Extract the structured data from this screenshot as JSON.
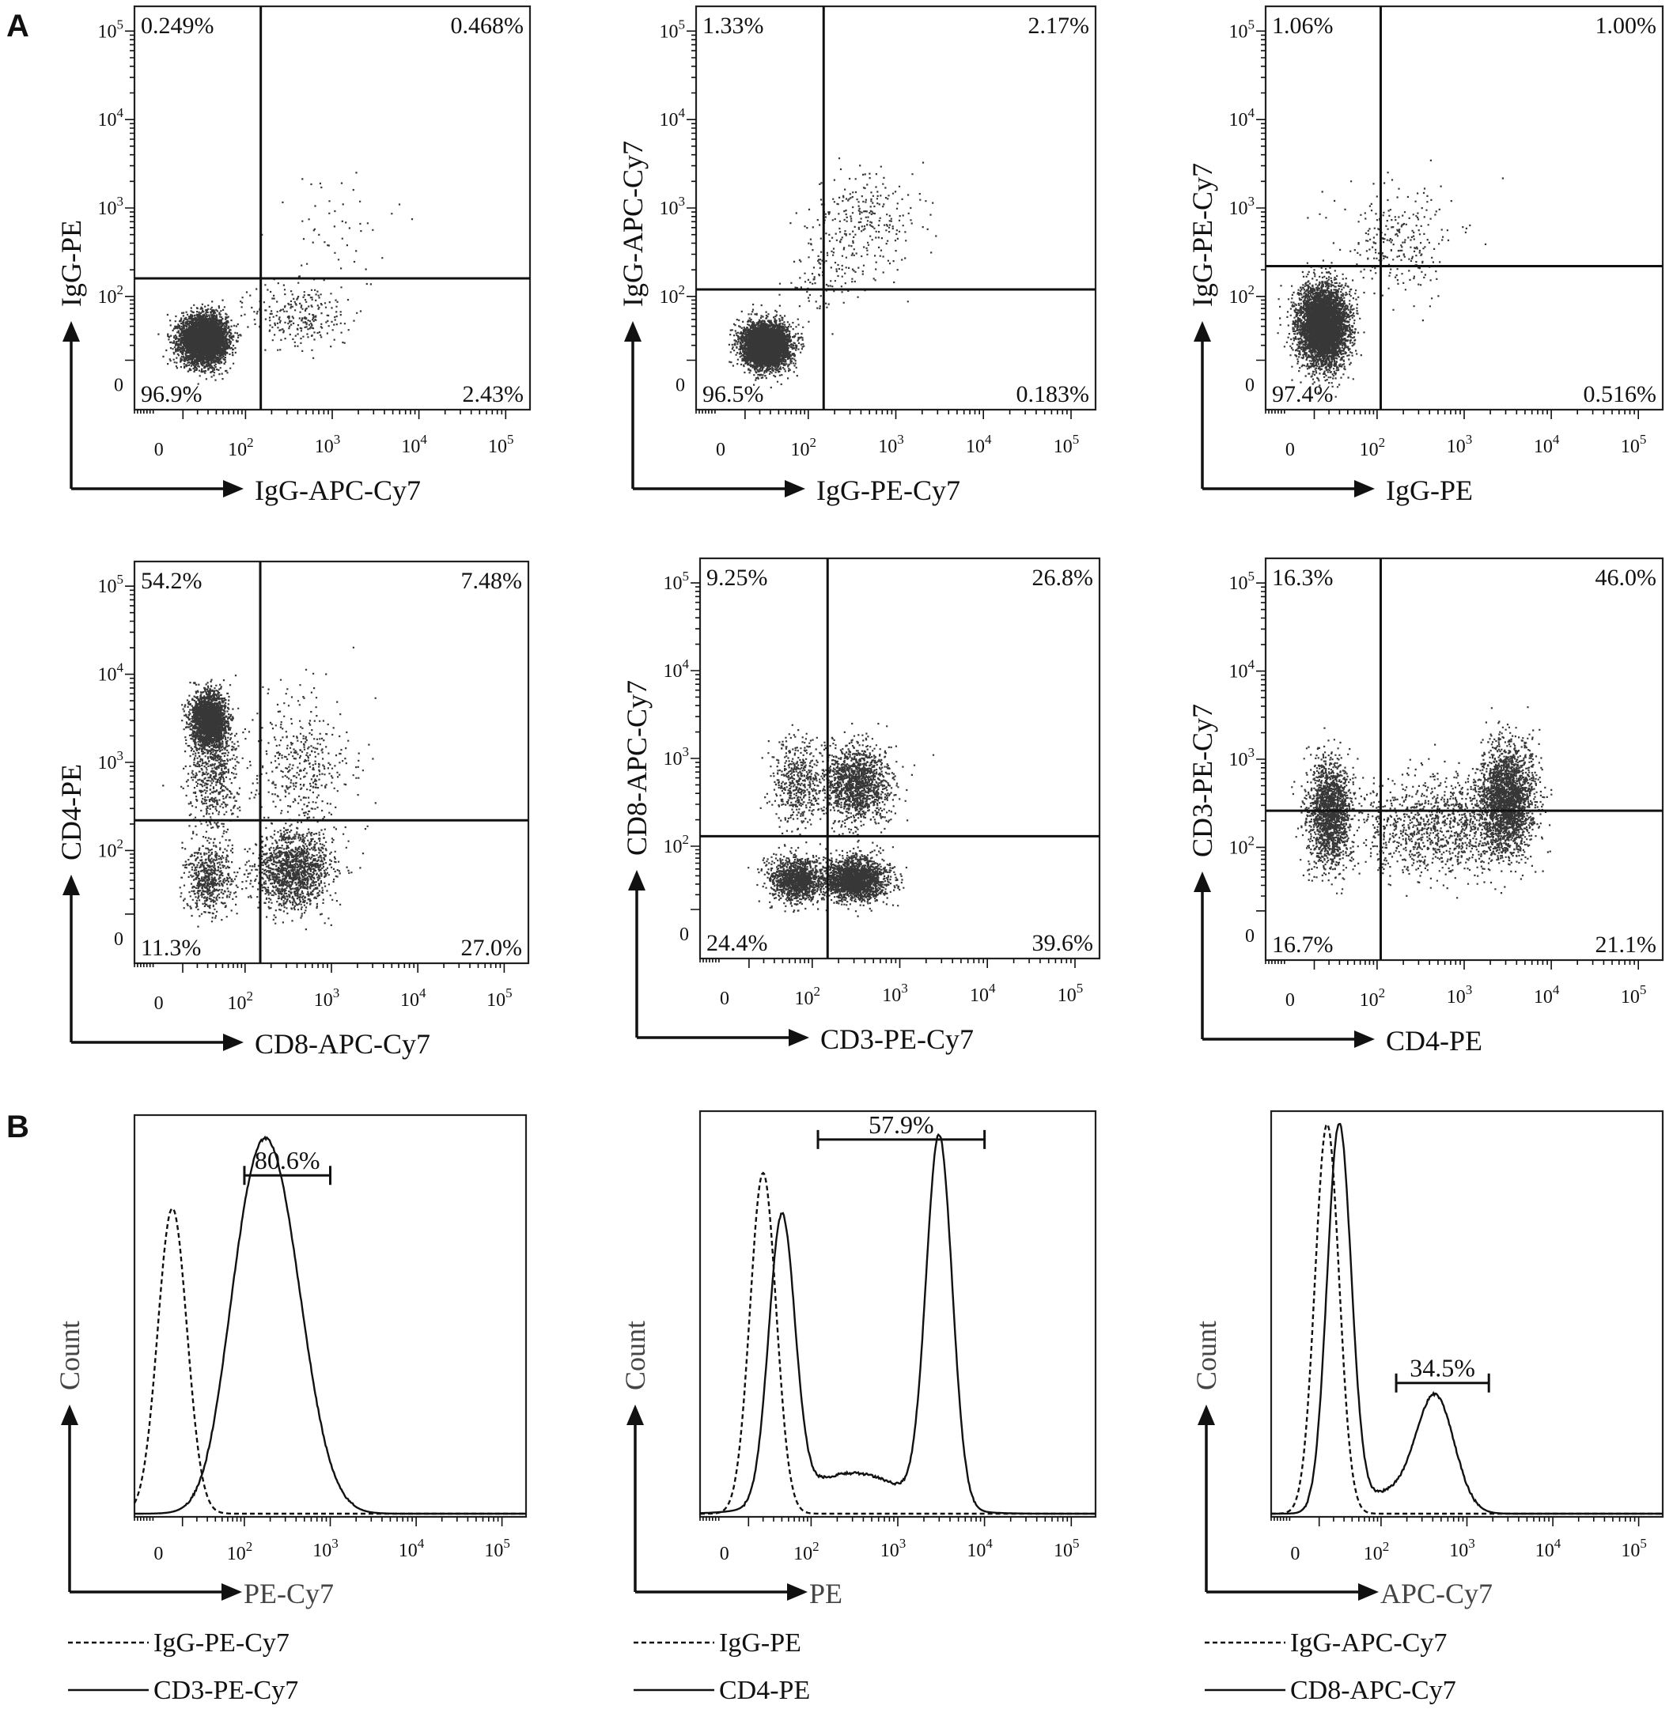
{
  "panel_labels": [
    "A",
    "B"
  ],
  "colors": {
    "ink": "#111111",
    "box": "#222222",
    "dots": "#141414",
    "dots_light": "#6a6a6a"
  },
  "chart_data": [
    {
      "type": "scatter",
      "panel": "A",
      "id": "isotype-pe-vs-apccy7",
      "xlabel": "IgG-APC-Cy7",
      "ylabel": "IgG-PE",
      "scale": "biexponential",
      "x_ticks": [
        "0",
        "10^2",
        "10^3",
        "10^4",
        "10^5"
      ],
      "y_ticks": [
        "0",
        "10^2",
        "10^3",
        "10^4",
        "10^5"
      ],
      "gate": {
        "x": 150,
        "y": 160
      },
      "quadrants": {
        "upper_left": "0.249%",
        "upper_right": "0.468%",
        "lower_left": "96.9%",
        "lower_right": "2.43%"
      },
      "populations": [
        {
          "x": 25,
          "y": 25,
          "sx": 0.13,
          "sy": 0.13,
          "weight": 0.94
        },
        {
          "x": 420,
          "y": 55,
          "sx": 0.28,
          "sy": 0.2,
          "weight": 0.05
        },
        {
          "x": 900,
          "y": 600,
          "sx": 0.35,
          "sy": 0.35,
          "weight": 0.01
        }
      ]
    },
    {
      "type": "scatter",
      "panel": "A",
      "id": "isotype-apccy7-vs-pecy7",
      "xlabel": "IgG-PE-Cy7",
      "ylabel": "IgG-APC-Cy7",
      "scale": "biexponential",
      "x_ticks": [
        "0",
        "10^2",
        "10^3",
        "10^4",
        "10^5"
      ],
      "y_ticks": [
        "0",
        "10^2",
        "10^3",
        "10^4",
        "10^5"
      ],
      "gate": {
        "x": 150,
        "y": 120
      },
      "quadrants": {
        "upper_left": "1.33%",
        "upper_right": "2.17%",
        "lower_left": "96.5%",
        "lower_right": "0.183%"
      },
      "populations": [
        {
          "x": 25,
          "y": 20,
          "sx": 0.13,
          "sy": 0.12,
          "weight": 0.93
        },
        {
          "x": 450,
          "y": 700,
          "sx": 0.3,
          "sy": 0.3,
          "weight": 0.05
        },
        {
          "x": 150,
          "y": 180,
          "sx": 0.2,
          "sy": 0.2,
          "weight": 0.02
        }
      ]
    },
    {
      "type": "scatter",
      "panel": "A",
      "id": "isotype-pecy7-vs-pe",
      "xlabel": "IgG-PE",
      "ylabel": "IgG-PE-Cy7",
      "scale": "biexponential",
      "x_ticks": [
        "0",
        "10^2",
        "10^3",
        "10^4",
        "10^5"
      ],
      "y_ticks": [
        "0",
        "10^2",
        "10^3",
        "10^4",
        "10^5"
      ],
      "gate": {
        "x": 110,
        "y": 220
      },
      "quadrants": {
        "upper_left": "1.06%",
        "upper_right": "1.00%",
        "lower_left": "97.4%",
        "lower_right": "0.516%"
      },
      "populations": [
        {
          "x": 15,
          "y": 40,
          "sx": 0.14,
          "sy": 0.22,
          "weight": 0.95
        },
        {
          "x": 180,
          "y": 420,
          "sx": 0.35,
          "sy": 0.3,
          "weight": 0.05
        }
      ]
    },
    {
      "type": "scatter",
      "panel": "A",
      "id": "cd4-vs-cd8",
      "xlabel": "CD8-APC-Cy7",
      "ylabel": "CD4-PE",
      "scale": "biexponential",
      "x_ticks": [
        "0",
        "10^2",
        "10^3",
        "10^4",
        "10^5"
      ],
      "y_ticks": [
        "0",
        "10^2",
        "10^3",
        "10^4",
        "10^5"
      ],
      "gate": {
        "x": 150,
        "y": 220
      },
      "quadrants": {
        "upper_left": "54.2%",
        "upper_right": "7.48%",
        "lower_left": "11.3%",
        "lower_right": "27.0%"
      },
      "populations": [
        {
          "x": 30,
          "y": 3000,
          "sx": 0.1,
          "sy": 0.16,
          "weight": 0.42
        },
        {
          "x": 35,
          "y": 700,
          "sx": 0.14,
          "sy": 0.35,
          "weight": 0.12
        },
        {
          "x": 30,
          "y": 40,
          "sx": 0.13,
          "sy": 0.2,
          "weight": 0.11
        },
        {
          "x": 350,
          "y": 55,
          "sx": 0.22,
          "sy": 0.22,
          "weight": 0.27
        },
        {
          "x": 450,
          "y": 900,
          "sx": 0.3,
          "sy": 0.4,
          "weight": 0.08
        }
      ]
    },
    {
      "type": "scatter",
      "panel": "A",
      "id": "cd8-vs-cd3",
      "xlabel": "CD3-PE-Cy7",
      "ylabel": "CD8-APC-Cy7",
      "scale": "biexponential",
      "x_ticks": [
        "0",
        "10^2",
        "10^3",
        "10^4",
        "10^5"
      ],
      "y_ticks": [
        "0",
        "10^2",
        "10^3",
        "10^4",
        "10^5"
      ],
      "gate": {
        "x": 150,
        "y": 130
      },
      "quadrants": {
        "upper_left": "9.25%",
        "upper_right": "26.8%",
        "lower_left": "24.4%",
        "lower_right": "39.6%"
      },
      "populations": [
        {
          "x": 60,
          "y": 35,
          "sx": 0.14,
          "sy": 0.12,
          "weight": 0.24
        },
        {
          "x": 300,
          "y": 35,
          "sx": 0.18,
          "sy": 0.12,
          "weight": 0.4
        },
        {
          "x": 60,
          "y": 500,
          "sx": 0.14,
          "sy": 0.25,
          "weight": 0.09
        },
        {
          "x": 320,
          "y": 500,
          "sx": 0.2,
          "sy": 0.22,
          "weight": 0.27
        }
      ]
    },
    {
      "type": "scatter",
      "panel": "A",
      "id": "cd3-vs-cd4",
      "xlabel": "CD4-PE",
      "ylabel": "CD3-PE-Cy7",
      "scale": "biexponential",
      "x_ticks": [
        "0",
        "10^2",
        "10^3",
        "10^4",
        "10^5"
      ],
      "y_ticks": [
        "0",
        "10^2",
        "10^3",
        "10^4",
        "10^5"
      ],
      "gate": {
        "x": 110,
        "y": 260
      },
      "quadrants": {
        "upper_left": "16.3%",
        "upper_right": "46.0%",
        "lower_left": "16.7%",
        "lower_right": "21.1%"
      },
      "populations": [
        {
          "x": 20,
          "y": 250,
          "sx": 0.12,
          "sy": 0.3,
          "weight": 0.33
        },
        {
          "x": 3000,
          "y": 350,
          "sx": 0.16,
          "sy": 0.3,
          "weight": 0.45
        },
        {
          "x": 500,
          "y": 180,
          "sx": 0.45,
          "sy": 0.28,
          "weight": 0.22
        }
      ]
    },
    {
      "type": "line",
      "panel": "B",
      "id": "hist-pecy7",
      "xlabel": "PE-Cy7",
      "ylabel": "Count",
      "scale": "biexponential",
      "x_ticks": [
        "0",
        "10^2",
        "10^3",
        "10^4",
        "10^5"
      ],
      "gate": {
        "label": "80.6%",
        "x_from": 100,
        "x_to": 1000,
        "height": 0.85
      },
      "series": [
        {
          "name": "IgG-PE-Cy7",
          "dash": "dashed",
          "peaks": [
            {
              "x": 5,
              "sigma": 0.17,
              "height": 0.76
            }
          ]
        },
        {
          "name": "CD3-PE-Cy7",
          "dash": "solid",
          "peaks": [
            {
              "x": 210,
              "sigma": 0.35,
              "height": 0.84
            },
            {
              "x": 90,
              "sigma": 0.25,
              "height": 0.22
            }
          ]
        }
      ]
    },
    {
      "type": "line",
      "panel": "B",
      "id": "hist-pe",
      "xlabel": "PE",
      "ylabel": "Count",
      "scale": "biexponential",
      "x_ticks": [
        "0",
        "10^2",
        "10^3",
        "10^4",
        "10^5"
      ],
      "gate": {
        "label": "57.9%",
        "x_from": 120,
        "x_to": 10000,
        "height": 0.93
      },
      "series": [
        {
          "name": "IgG-PE",
          "dash": "dashed",
          "peaks": [
            {
              "x": 20,
              "sigma": 0.15,
              "height": 0.84
            }
          ]
        },
        {
          "name": "CD4-PE",
          "dash": "solid",
          "peaks": [
            {
              "x": 40,
              "sigma": 0.15,
              "height": 0.7
            },
            {
              "x": 3000,
              "sigma": 0.15,
              "height": 0.91
            },
            {
              "x": 300,
              "sigma": 0.6,
              "height": 0.1
            }
          ]
        }
      ]
    },
    {
      "type": "line",
      "panel": "B",
      "id": "hist-apccy7",
      "xlabel": "APC-Cy7",
      "ylabel": "Count",
      "scale": "biexponential",
      "x_ticks": [
        "0",
        "10^2",
        "10^3",
        "10^4",
        "10^5"
      ],
      "gate": {
        "label": "34.5%",
        "x_from": 150,
        "x_to": 1800,
        "height": 0.33
      },
      "series": [
        {
          "name": "IgG-APC-Cy7",
          "dash": "dashed",
          "peaks": [
            {
              "x": 15,
              "sigma": 0.14,
              "height": 0.96
            }
          ]
        },
        {
          "name": "CD8-APC-Cy7",
          "dash": "solid",
          "peaks": [
            {
              "x": 25,
              "sigma": 0.14,
              "height": 0.95
            },
            {
              "x": 430,
              "sigma": 0.22,
              "height": 0.28
            },
            {
              "x": 120,
              "sigma": 0.35,
              "height": 0.05
            }
          ]
        }
      ]
    }
  ]
}
